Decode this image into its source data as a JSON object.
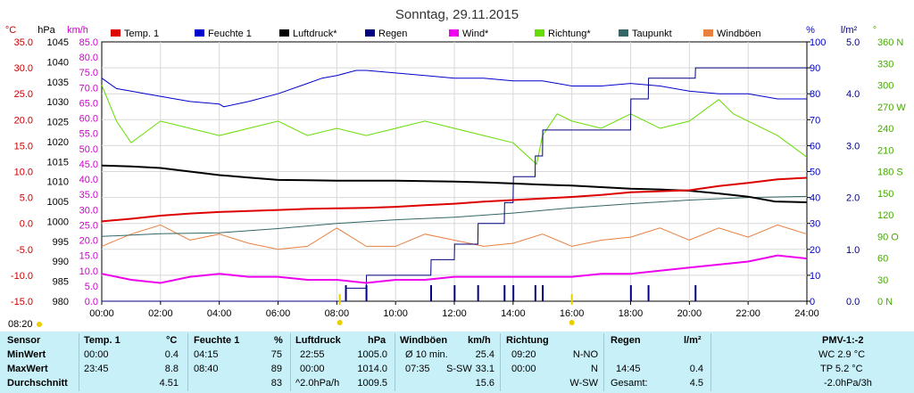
{
  "chart_data": {
    "type": "line",
    "title": "Sonntag, 29.11.2015",
    "x_axis": {
      "range": [
        "00:00",
        "24:00"
      ],
      "ticks": [
        "00:00",
        "02:00",
        "04:00",
        "06:00",
        "08:00",
        "10:00",
        "12:00",
        "14:00",
        "16:00",
        "18:00",
        "20:00",
        "22:00",
        "24:00"
      ],
      "grid": true
    },
    "axes_left": [
      {
        "unit": "°C",
        "color": "#cc0000",
        "range": [
          -15,
          35
        ],
        "ticks": [
          "35.0",
          "30.0",
          "25.0",
          "20.0",
          "15.0",
          "10.0",
          "5.0",
          "0.0",
          "-5.0",
          "-10.0",
          "-15.0"
        ]
      },
      {
        "unit": "hPa",
        "color": "#000000",
        "range": [
          980,
          1045
        ],
        "ticks": [
          "1045",
          "1040",
          "1035",
          "1030",
          "1025",
          "1020",
          "1015",
          "1010",
          "1005",
          "1000",
          "995",
          "990",
          "985",
          "980"
        ]
      },
      {
        "unit": "km/h",
        "color": "#cc00cc",
        "range": [
          0,
          85
        ],
        "ticks": [
          "85.0",
          "80.0",
          "75.0",
          "70.0",
          "65.0",
          "60.0",
          "55.0",
          "50.0",
          "45.0",
          "40.0",
          "35.0",
          "30.0",
          "25.0",
          "20.0",
          "15.0",
          "10.0",
          "5.0",
          "0.0"
        ]
      }
    ],
    "axes_right": [
      {
        "unit": "%",
        "color": "#0000cc",
        "range": [
          0,
          100
        ],
        "ticks": [
          "100",
          "90",
          "80",
          "70",
          "60",
          "50",
          "40",
          "30",
          "20",
          "10",
          "0"
        ]
      },
      {
        "unit": "l/m²",
        "color": "#000080",
        "range": [
          0,
          5
        ],
        "ticks": [
          "5.0",
          "4.0",
          "3.0",
          "2.0",
          "1.0",
          "0.0"
        ]
      },
      {
        "unit": "°",
        "color": "#44aa00",
        "range": [
          0,
          360
        ],
        "ticks": [
          "360 N",
          "330",
          "300",
          "270 W",
          "240",
          "210",
          "180 S",
          "150",
          "120",
          "90 O",
          "60",
          "30",
          "0 N"
        ]
      }
    ],
    "legend_position": "top",
    "series": [
      {
        "name": "Temp. 1",
        "color": "#dd0000",
        "axis": "°C",
        "x": [
          0,
          1,
          2,
          3,
          4,
          5,
          6,
          7,
          8,
          9,
          10,
          11,
          12,
          13,
          14,
          15,
          16,
          17,
          18,
          19,
          20,
          21,
          22,
          23,
          24
        ],
        "y": [
          0.4,
          0.9,
          1.5,
          1.9,
          2.2,
          2.4,
          2.6,
          2.8,
          2.9,
          3.0,
          3.2,
          3.5,
          3.8,
          4.2,
          4.5,
          4.8,
          5.1,
          5.5,
          6.0,
          6.2,
          6.4,
          7.2,
          7.8,
          8.5,
          8.8
        ]
      },
      {
        "name": "Feuchte 1",
        "color": "#0000cc",
        "axis": "%",
        "x": [
          0,
          0.5,
          1,
          1.5,
          2,
          3,
          4,
          4.15,
          5,
          6,
          7,
          7.5,
          8,
          8.66,
          9,
          10,
          11,
          12,
          13,
          14,
          15,
          16,
          17,
          18,
          19,
          20,
          21,
          22,
          23,
          24
        ],
        "y": [
          86,
          82,
          81,
          80,
          79,
          77,
          76,
          75,
          77,
          80,
          84,
          86,
          87,
          89,
          89,
          88,
          87,
          86,
          86,
          85,
          85,
          83,
          83,
          84,
          83,
          81,
          80,
          80,
          78,
          78
        ]
      },
      {
        "name": "Luftdruck*",
        "color": "#000000",
        "axis": "hPa",
        "x": [
          0,
          1,
          2,
          3,
          4,
          5,
          6,
          7,
          8,
          9,
          10,
          11,
          12,
          13,
          14,
          15,
          16,
          17,
          18,
          19,
          20,
          21,
          22,
          22.91,
          24
        ],
        "y": [
          1014.0,
          1013.8,
          1013.4,
          1012.5,
          1011.6,
          1011.0,
          1010.4,
          1010.3,
          1010.2,
          1010.2,
          1010.2,
          1010.1,
          1010.0,
          1009.8,
          1009.5,
          1009.2,
          1009.0,
          1008.6,
          1008.2,
          1008.0,
          1007.7,
          1007.0,
          1006.2,
          1005.0,
          1004.8
        ]
      },
      {
        "name": "Regen",
        "color": "#000080",
        "axis": "l/m²",
        "x": [
          0,
          8.3,
          8.31,
          9.0,
          9.01,
          11.2,
          11.21,
          12.0,
          12.01,
          12.8,
          12.81,
          13.7,
          13.71,
          14.0,
          14.01,
          14.75,
          14.76,
          15.0,
          15.01,
          18.0,
          18.01,
          18.6,
          18.61,
          20.2,
          20.21,
          24
        ],
        "y": [
          0,
          0,
          0.25,
          0.25,
          0.5,
          0.5,
          0.8,
          0.8,
          1.1,
          1.1,
          1.5,
          1.5,
          1.9,
          1.9,
          2.4,
          2.4,
          2.8,
          2.8,
          3.3,
          3.3,
          3.9,
          3.9,
          4.3,
          4.3,
          4.5,
          4.5
        ]
      },
      {
        "name": "Wind*",
        "color": "#ee00ee",
        "axis": "km/h",
        "x": [
          0,
          1,
          2,
          3,
          4,
          5,
          6,
          7,
          8,
          9,
          10,
          11,
          12,
          13,
          14,
          15,
          16,
          17,
          18,
          19,
          20,
          21,
          22,
          23,
          24
        ],
        "y": [
          9,
          7,
          6,
          8,
          9,
          8,
          8,
          7,
          7,
          6,
          7,
          7,
          8,
          8,
          8,
          8,
          8,
          9,
          9,
          10,
          11,
          12,
          13,
          15,
          14
        ]
      },
      {
        "name": "Richtung*",
        "color": "#66dd00",
        "axis": "°",
        "x": [
          0,
          0.5,
          1,
          1.5,
          2,
          3,
          4,
          5,
          6,
          7,
          8,
          9,
          10,
          11,
          12,
          13,
          14,
          14.8,
          15,
          15.5,
          16,
          17,
          18,
          19,
          20,
          21,
          21.5,
          22,
          23,
          24
        ],
        "y": [
          300,
          250,
          220,
          235,
          250,
          240,
          230,
          240,
          250,
          230,
          240,
          230,
          240,
          250,
          240,
          230,
          220,
          190,
          230,
          260,
          250,
          240,
          260,
          240,
          250,
          280,
          260,
          250,
          230,
          200
        ]
      },
      {
        "name": "Taupunkt",
        "color": "#336666",
        "axis": "°C",
        "x": [
          0,
          2,
          4,
          6,
          8,
          10,
          12,
          14,
          16,
          18,
          20,
          22,
          24
        ],
        "y": [
          -2.5,
          -2.0,
          -1.8,
          -1.0,
          0.0,
          0.7,
          1.2,
          2.0,
          3.0,
          3.8,
          4.5,
          5.0,
          5.2
        ]
      },
      {
        "name": "Windböen",
        "color": "#e88040",
        "axis": "km/h",
        "x": [
          0,
          1,
          2,
          3,
          4,
          5,
          6,
          7,
          8,
          9,
          10,
          11,
          12,
          13,
          14,
          15,
          16,
          17,
          18,
          19,
          20,
          21,
          22,
          23,
          24
        ],
        "y": [
          18,
          22,
          25,
          20,
          22,
          19,
          17,
          18,
          24,
          18,
          18,
          22,
          20,
          18,
          19,
          22,
          18,
          20,
          21,
          24,
          20,
          24,
          21,
          25,
          22
        ]
      }
    ]
  },
  "footer_marks": [
    "08:20"
  ],
  "info_table": {
    "headers": {
      "sensor": "Sensor",
      "temp": "Temp. 1",
      "temp_unit": "°C",
      "humidity": "Feuchte 1",
      "humidity_unit": "%",
      "pressure": "Luftdruck",
      "pressure_unit": "hPa",
      "gusts": "Windböen",
      "gusts_unit": "km/h",
      "direction": "Richtung",
      "rain": "Regen",
      "rain_unit": "l/m²",
      "pmv": "PMV-1:-2"
    },
    "rows": [
      {
        "label": "MinWert",
        "temp_time": "00:00",
        "temp_val": "0.4",
        "hum_time": "04:15",
        "hum_val": "75",
        "press_time": "22:55",
        "press_val": "1005.0",
        "gust_time": "Ø 10 min.",
        "gust_val": "25.4",
        "dir_time": "09:20",
        "dir_val": "N-NO",
        "rain_time": "",
        "rain_val": "",
        "pmv": "WC 2.9 °C"
      },
      {
        "label": "MaxWert",
        "temp_time": "23:45",
        "temp_val": "8.8",
        "hum_time": "08:40",
        "hum_val": "89",
        "press_time": "00:00",
        "press_val": "1014.0",
        "gust_time": "07:35",
        "gust_dir": "S-SW",
        "gust_val": "33.1",
        "dir_time": "00:00",
        "dir_val": "N",
        "rain_time": "14:45",
        "rain_val": "0.4",
        "pmv": "TP 5.2 °C"
      },
      {
        "label": "Durchschnitt",
        "temp_time": "",
        "temp_val": "4.51",
        "hum_time": "",
        "hum_val": "83",
        "press_time": "^2.0hPa/h",
        "press_val": "1009.5",
        "gust_time": "",
        "gust_val": "15.6",
        "dir_time": "",
        "dir_val": "W-SW",
        "rain_time": "Gesamt:",
        "rain_val": "4.5",
        "pmv": "-2.0hPa/3h"
      }
    ]
  }
}
